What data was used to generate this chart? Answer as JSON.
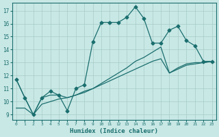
{
  "xlabel": "Humidex (Indice chaleur)",
  "bg_color": "#c8e8e5",
  "line_color": "#1a6e6e",
  "grid_color": "#a8ccc8",
  "xlim": [
    -0.5,
    23.5
  ],
  "ylim": [
    8.6,
    17.6
  ],
  "yticks": [
    9,
    10,
    11,
    12,
    13,
    14,
    15,
    16,
    17
  ],
  "xticks": [
    0,
    1,
    2,
    3,
    4,
    5,
    6,
    7,
    8,
    9,
    10,
    11,
    12,
    13,
    14,
    15,
    16,
    17,
    18,
    19,
    20,
    21,
    22,
    23
  ],
  "series": [
    {
      "x": [
        0,
        1,
        2,
        3,
        4,
        5,
        6,
        7,
        8,
        9,
        10,
        11,
        12,
        13,
        14,
        15,
        16,
        17,
        18,
        19,
        20,
        21,
        22,
        23
      ],
      "y": [
        11.7,
        10.3,
        9.0,
        10.3,
        10.8,
        10.5,
        9.3,
        11.0,
        11.3,
        14.6,
        16.1,
        16.1,
        16.1,
        16.5,
        17.3,
        16.4,
        14.5,
        14.5,
        15.5,
        15.8,
        14.7,
        14.3,
        13.1,
        13.1
      ],
      "marker": "D",
      "ms": 2.5,
      "lw": 0.9,
      "ls": "-"
    },
    {
      "x": [
        0,
        1,
        2,
        3,
        4,
        5,
        6,
        7,
        8,
        9,
        10,
        11,
        12,
        13,
        14,
        15,
        16,
        17,
        18,
        19,
        20,
        21,
        22,
        23
      ],
      "y": [
        11.7,
        10.3,
        9.0,
        10.3,
        10.5,
        10.5,
        10.3,
        10.5,
        10.8,
        11.0,
        11.4,
        11.8,
        12.2,
        12.6,
        13.1,
        13.4,
        13.8,
        14.2,
        12.2,
        12.6,
        12.9,
        13.0,
        13.0,
        13.1
      ],
      "marker": null,
      "ms": 0,
      "lw": 0.9,
      "ls": "-"
    },
    {
      "x": [
        0,
        1,
        2,
        3,
        4,
        5,
        6,
        7,
        8,
        9,
        10,
        11,
        12,
        13,
        14,
        15,
        16,
        17,
        18,
        19,
        20,
        21,
        22,
        23
      ],
      "y": [
        9.5,
        9.5,
        9.0,
        9.8,
        10.0,
        10.2,
        10.3,
        10.5,
        10.7,
        11.0,
        11.3,
        11.6,
        11.9,
        12.2,
        12.5,
        12.8,
        13.1,
        13.3,
        12.2,
        12.5,
        12.8,
        12.9,
        13.0,
        13.1
      ],
      "marker": null,
      "ms": 0,
      "lw": 0.9,
      "ls": "-"
    }
  ]
}
